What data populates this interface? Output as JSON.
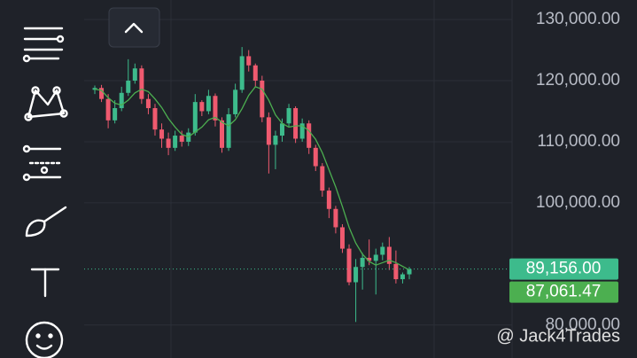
{
  "chart_data": {
    "type": "candlestick",
    "open": [
      118500,
      118800,
      117000,
      113500,
      115500,
      118000,
      120000,
      122000,
      117000,
      115500,
      112000,
      110500,
      109000,
      111000,
      110000,
      111500,
      116500,
      115000,
      117500,
      113500,
      109000,
      114500,
      118500,
      124000,
      122500,
      120000,
      114000,
      109500,
      111000,
      113000,
      115500,
      110500,
      113000,
      109000,
      106000,
      102000,
      99000,
      96000,
      92500,
      87000,
      89500,
      91000,
      90500,
      91500,
      92800,
      90000,
      87500,
      88300
    ],
    "high": [
      119200,
      119300,
      117800,
      116800,
      119000,
      123500,
      122800,
      122500,
      117800,
      116200,
      113000,
      111500,
      111800,
      111800,
      112200,
      117800,
      116800,
      118500,
      117900,
      114000,
      115500,
      119500,
      125500,
      125000,
      122800,
      120800,
      114800,
      111800,
      113800,
      116200,
      115800,
      113800,
      113500,
      109500,
      106500,
      102500,
      99500,
      96500,
      93200,
      90800,
      91800,
      94000,
      92500,
      93500,
      94400,
      92200,
      88600,
      89500
    ],
    "low": [
      117800,
      116500,
      112200,
      113000,
      115000,
      117500,
      119500,
      116200,
      114500,
      111000,
      109000,
      107800,
      108500,
      109200,
      109300,
      111000,
      114200,
      114500,
      112500,
      108200,
      108500,
      114000,
      118000,
      121500,
      119000,
      113200,
      104800,
      105500,
      110000,
      112500,
      109800,
      110000,
      108000,
      105200,
      101000,
      97500,
      95000,
      91800,
      86500,
      80500,
      85800,
      89800,
      85000,
      90600,
      89000,
      86800,
      86800,
      87500
    ],
    "close": [
      118800,
      117000,
      113500,
      115500,
      118000,
      120000,
      122000,
      117000,
      115500,
      112000,
      110500,
      109000,
      111000,
      110000,
      111500,
      116500,
      115000,
      117500,
      113500,
      109000,
      114500,
      118500,
      124000,
      122500,
      120000,
      114000,
      109500,
      111000,
      113000,
      115500,
      110500,
      113000,
      109000,
      106000,
      102000,
      99000,
      96000,
      92500,
      87000,
      89500,
      91000,
      90500,
      91500,
      92800,
      90000,
      87500,
      88300,
      89156
    ],
    "moving_average": {
      "color": "#4caf50",
      "values": [
        118600,
        118400,
        117200,
        116300,
        116000,
        116800,
        118000,
        118600,
        118200,
        117000,
        115600,
        113800,
        112400,
        111200,
        110800,
        111600,
        112400,
        113600,
        114000,
        113200,
        112600,
        113600,
        115400,
        117600,
        119000,
        118600,
        116800,
        114400,
        113000,
        112400,
        112600,
        112600,
        111800,
        110400,
        108200,
        105400,
        102600,
        99400,
        96000,
        93400,
        91600,
        90400,
        89800,
        90200,
        90600,
        90200,
        89600,
        89000
      ]
    },
    "up_color": "#3dbb8c",
    "down_color": "#ef5a6f",
    "ylim": [
      74600,
      133200
    ],
    "yticks": [
      {
        "value": 130000,
        "label": "130,000.00"
      },
      {
        "value": 120000,
        "label": "120,000.00"
      },
      {
        "value": 110000,
        "label": "110,000.00"
      },
      {
        "value": 100000,
        "label": "100,000.00"
      },
      {
        "value": 80000,
        "label": "80,000.00"
      }
    ],
    "grid": true,
    "price_lines": [
      {
        "value": 89156,
        "label": "89,156.00",
        "color": "#3dbb8c"
      },
      {
        "value": 87061.47,
        "label": "87,061.47",
        "color": "#4caf50"
      }
    ],
    "watermark": "@ Jack4Trades"
  }
}
